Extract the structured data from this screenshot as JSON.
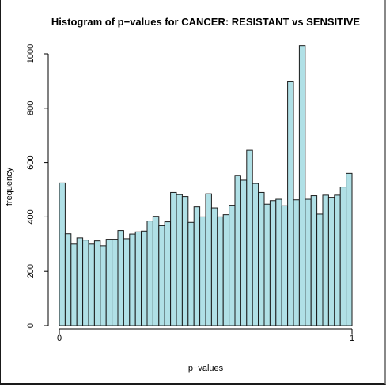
{
  "chart_data": {
    "type": "bar",
    "title": "Histogram of p−values for CANCER: RESISTANT vs SENSITIVE",
    "xlabel": "p−values",
    "ylabel": "frequency",
    "xlim": [
      0,
      1
    ],
    "ylim": [
      0,
      1000
    ],
    "x_ticks": [
      0,
      1
    ],
    "x_tick_labels": [
      "0",
      "1"
    ],
    "y_ticks": [
      0,
      200,
      400,
      600,
      800,
      1000
    ],
    "y_tick_labels": [
      "0",
      "200",
      "400",
      "600",
      "800",
      "1000"
    ],
    "bin_width": 0.02,
    "bin_starts": [
      0.0,
      0.02,
      0.04,
      0.06,
      0.08,
      0.1,
      0.12,
      0.14,
      0.16,
      0.18,
      0.2,
      0.22,
      0.24,
      0.26,
      0.28,
      0.3,
      0.32,
      0.34,
      0.36,
      0.38,
      0.4,
      0.42,
      0.44,
      0.46,
      0.48,
      0.5,
      0.52,
      0.54,
      0.56,
      0.58,
      0.6,
      0.62,
      0.64,
      0.66,
      0.68,
      0.7,
      0.72,
      0.74,
      0.76,
      0.78,
      0.8,
      0.82,
      0.84,
      0.86,
      0.88,
      0.9,
      0.92,
      0.94,
      0.96,
      0.98
    ],
    "values": [
      525,
      338,
      300,
      323,
      315,
      300,
      312,
      294,
      318,
      318,
      350,
      320,
      337,
      345,
      348,
      385,
      402,
      368,
      382,
      490,
      482,
      475,
      380,
      437,
      400,
      485,
      433,
      400,
      408,
      443,
      553,
      535,
      645,
      523,
      490,
      447,
      460,
      465,
      441,
      897,
      463,
      1030,
      465,
      478,
      410,
      480,
      472,
      480,
      510,
      560
    ],
    "colors": {
      "bar_fill": "#b0e0e6",
      "bar_stroke": "#1a1a1a",
      "axis": "#000000"
    },
    "grid": false
  }
}
